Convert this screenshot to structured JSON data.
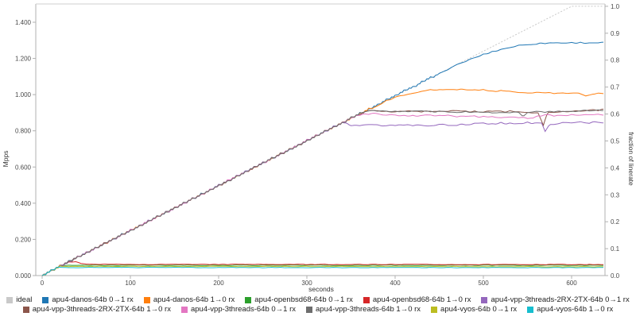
{
  "chart_data": {
    "type": "line",
    "title": "",
    "xlabel": "seconds",
    "ylabel_left": "Mpps",
    "ylabel_right": "fraction of linerate",
    "x_ticks": [
      0,
      100,
      200,
      300,
      400,
      500,
      600
    ],
    "x_max": 636,
    "y_left_ticks": [
      "0.000",
      "0.200",
      "0.400",
      "0.600",
      "0.800",
      "1.000",
      "1.200",
      "1.400"
    ],
    "y_left_max": 1.5,
    "y_right_ticks": [
      "0.0",
      "0.1",
      "0.2",
      "0.3",
      "0.4",
      "0.5",
      "0.6",
      "0.7",
      "0.8",
      "0.9",
      "1.0"
    ],
    "linerate_mpps": 1.4881,
    "ramp_mpps_per_s": 0.00248,
    "ramp_step_s": 5,
    "grid": false,
    "legend_position": "bottom",
    "legend_rows": [
      [
        0,
        1,
        2,
        3,
        4,
        5
      ],
      [
        6,
        7,
        8,
        9,
        10
      ]
    ],
    "series": [
      {
        "name": "ideal",
        "color": "#c9c9c9",
        "dash": "2,2",
        "noise": 0,
        "ramp_until": 0,
        "points": [
          [
            0,
            0
          ],
          [
            600,
            1.4881
          ],
          [
            640,
            1.4881
          ]
        ]
      },
      {
        "name": "apu4-danos-64b 0→1 rx",
        "color": "#1f77b4",
        "noise": 0.004,
        "ramp_until": 450,
        "points": [
          [
            450,
            1.116
          ],
          [
            465,
            1.152
          ],
          [
            480,
            1.185
          ],
          [
            495,
            1.213
          ],
          [
            510,
            1.237
          ],
          [
            525,
            1.256
          ],
          [
            540,
            1.271
          ],
          [
            555,
            1.28
          ],
          [
            575,
            1.286
          ],
          [
            640,
            1.287
          ]
        ]
      },
      {
        "name": "apu4-danos-64b 1→0 rx",
        "color": "#ff7f0e",
        "noise": 0.004,
        "ramp_until": 376,
        "points": [
          [
            376,
            0.932
          ],
          [
            390,
            0.965
          ],
          [
            405,
            0.992
          ],
          [
            420,
            1.01
          ],
          [
            440,
            1.024
          ],
          [
            460,
            1.03
          ],
          [
            485,
            1.029
          ],
          [
            510,
            1.022
          ],
          [
            540,
            1.014
          ],
          [
            575,
            1.009
          ],
          [
            608,
            1.007
          ],
          [
            616,
            0.994
          ],
          [
            624,
            1.006
          ],
          [
            640,
            1.004
          ]
        ]
      },
      {
        "name": "apu4-openbsd68-64b 0→1 rx",
        "color": "#2ca02c",
        "noise": 0.0015,
        "ramp_until": 23,
        "points": [
          [
            23,
            0.057
          ],
          [
            640,
            0.057
          ]
        ]
      },
      {
        "name": "apu4-openbsd68-64b 1→0 rx",
        "color": "#d62728",
        "noise": 0.0015,
        "ramp_until": 30,
        "points": [
          [
            30,
            0.074
          ],
          [
            38,
            0.077
          ],
          [
            44,
            0.066
          ],
          [
            54,
            0.062
          ],
          [
            640,
            0.061
          ]
        ]
      },
      {
        "name": "apu4-vpp-3threads-2RX-2TX-64b 0→1 rx",
        "color": "#9467bd",
        "noise": 0.006,
        "ramp_until": 341,
        "points": [
          [
            341,
            0.846
          ],
          [
            348,
            0.833
          ],
          [
            380,
            0.829
          ],
          [
            450,
            0.831
          ],
          [
            520,
            0.842
          ],
          [
            558,
            0.845
          ],
          [
            566,
            0.84
          ],
          [
            570,
            0.791
          ],
          [
            575,
            0.838
          ],
          [
            600,
            0.845
          ],
          [
            640,
            0.849
          ]
        ]
      },
      {
        "name": "apu4-vpp-3threads-2RX-2TX-64b 1→0 rx",
        "color": "#8c564b",
        "noise": 0.005,
        "ramp_until": 360,
        "points": [
          [
            360,
            0.893
          ],
          [
            366,
            0.909
          ],
          [
            400,
            0.907
          ],
          [
            470,
            0.908
          ],
          [
            540,
            0.906
          ],
          [
            562,
            0.898
          ],
          [
            568,
            0.827
          ],
          [
            573,
            0.903
          ],
          [
            600,
            0.91
          ],
          [
            640,
            0.917
          ]
        ]
      },
      {
        "name": "apu4-vpp-3threads-64b 0→1 rx",
        "color": "#e377c2",
        "noise": 0.005,
        "ramp_until": 358,
        "points": [
          [
            358,
            0.888
          ],
          [
            365,
            0.896
          ],
          [
            400,
            0.886
          ],
          [
            460,
            0.882
          ],
          [
            500,
            0.877
          ],
          [
            540,
            0.874
          ],
          [
            556,
            0.87
          ],
          [
            562,
            0.884
          ],
          [
            600,
            0.886
          ],
          [
            640,
            0.89
          ]
        ]
      },
      {
        "name": "apu4-vpp-3threads-64b 1→0 rx",
        "color": "#6e6e6e",
        "noise": 0.004,
        "ramp_until": 362,
        "points": [
          [
            362,
            0.898
          ],
          [
            370,
            0.911
          ],
          [
            420,
            0.908
          ],
          [
            480,
            0.904
          ],
          [
            540,
            0.901
          ],
          [
            545,
            0.88
          ],
          [
            550,
            0.903
          ],
          [
            600,
            0.909
          ],
          [
            640,
            0.915
          ]
        ]
      },
      {
        "name": "apu4-vyos-64b 0→1 rx",
        "color": "#bcbd22",
        "noise": 0.0015,
        "ramp_until": 21,
        "points": [
          [
            21,
            0.051
          ],
          [
            640,
            0.049
          ]
        ]
      },
      {
        "name": "apu4-vyos-64b 1→0 rx",
        "color": "#17becf",
        "noise": 0.0015,
        "ramp_until": 18,
        "points": [
          [
            18,
            0.045
          ],
          [
            640,
            0.044
          ]
        ]
      }
    ]
  }
}
